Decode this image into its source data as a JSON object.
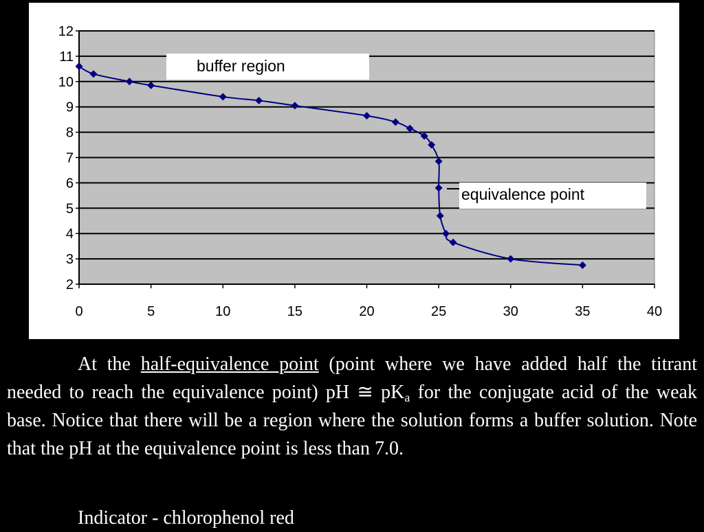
{
  "chart_data": {
    "type": "scatter",
    "x": [
      0,
      1,
      3.5,
      5,
      10,
      12.5,
      15,
      20,
      22,
      23,
      24,
      24.5,
      25,
      25,
      25.1,
      25.5,
      26,
      30,
      35
    ],
    "y": [
      10.6,
      10.3,
      10.0,
      9.85,
      9.4,
      9.25,
      9.05,
      8.65,
      8.4,
      8.15,
      7.85,
      7.5,
      6.85,
      5.8,
      4.7,
      4.0,
      3.65,
      3.0,
      2.75
    ],
    "xlim": [
      0,
      40
    ],
    "ylim": [
      2,
      12
    ],
    "xticks": [
      0,
      5,
      10,
      15,
      20,
      25,
      30,
      35,
      40
    ],
    "yticks": [
      2,
      3,
      4,
      5,
      6,
      7,
      8,
      9,
      10,
      11,
      12
    ],
    "grid": "horizontal",
    "line_style": "smoothed line with diamond markers",
    "colors": {
      "series": "#000080",
      "plot_background": "#c0c0c0",
      "panel_background": "#ffffff",
      "gridline": "#000000"
    },
    "annotations": [
      {
        "text": "buffer region"
      },
      {
        "text": "equivalence point"
      }
    ]
  },
  "text": {
    "para_1": "At the ",
    "para_link": "half-equivalence point",
    "para_2": " (point where we have added half the titrant needed to reach the equivalence point) pH ≅ pK",
    "para_sub": "a",
    "para_3": " for the conjugate acid of the weak base.  Notice that there will be a region where the solution forms a buffer solution.  Note that the pH at the equivalence point is less than 7.0.",
    "indicator": "Indicator - chlorophenol red"
  },
  "colors": {
    "page_background": "#000000",
    "body_text": "#ffffff"
  }
}
